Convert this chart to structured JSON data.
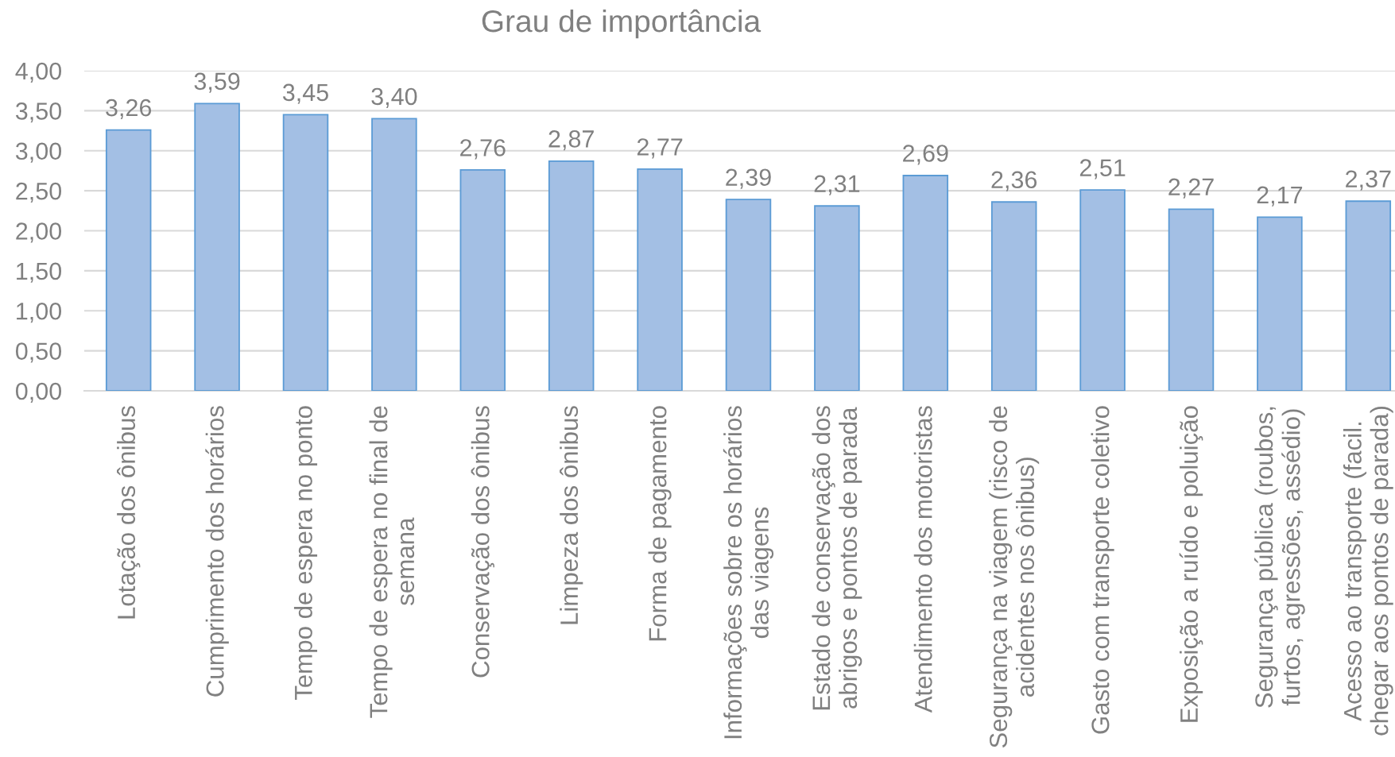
{
  "chart_data": {
    "type": "bar",
    "title": "Grau de importância",
    "categories": [
      "Lotação dos ônibus",
      "Cumprimento dos horários",
      "Tempo de espera no ponto",
      "Tempo de espera no final de\nsemana",
      "Conservação dos ônibus",
      "Limpeza dos ônibus",
      "Forma de pagamento",
      "Informações sobre os horários\ndas viagens",
      "Estado de conservação dos\nabrigos e pontos de parada",
      "Atendimento dos motoristas",
      "Segurança na viagem (risco de\nacidentes nos ônibus)",
      "Gasto com transporte coletivo",
      "Exposição a ruído e poluição",
      "Segurança pública (roubos,\nfurtos, agressões, assédio)",
      "Acesso ao transporte (facil.\nchegar aos pontos de parada)"
    ],
    "values": [
      3.26,
      3.59,
      3.45,
      3.4,
      2.76,
      2.87,
      2.77,
      2.39,
      2.31,
      2.69,
      2.36,
      2.51,
      2.27,
      2.17,
      2.37
    ],
    "value_labels": [
      "3,26",
      "3,59",
      "3,45",
      "3,40",
      "2,76",
      "2,87",
      "2,77",
      "2,39",
      "2,31",
      "2,69",
      "2,36",
      "2,51",
      "2,27",
      "2,17",
      "2,37"
    ],
    "color": "#a3bfe4",
    "ylim": [
      0,
      4
    ],
    "yticks": [
      {
        "value": 0,
        "label": "0,00"
      },
      {
        "value": 0.5,
        "label": "0,50"
      },
      {
        "value": 1,
        "label": "1,00"
      },
      {
        "value": 1.5,
        "label": "1,50"
      },
      {
        "value": 2,
        "label": "2,00"
      },
      {
        "value": 2.5,
        "label": "2,50"
      },
      {
        "value": 3,
        "label": "3,00"
      },
      {
        "value": 3.5,
        "label": "3,50"
      },
      {
        "value": 4,
        "label": "4,00"
      }
    ],
    "grid": "y"
  }
}
